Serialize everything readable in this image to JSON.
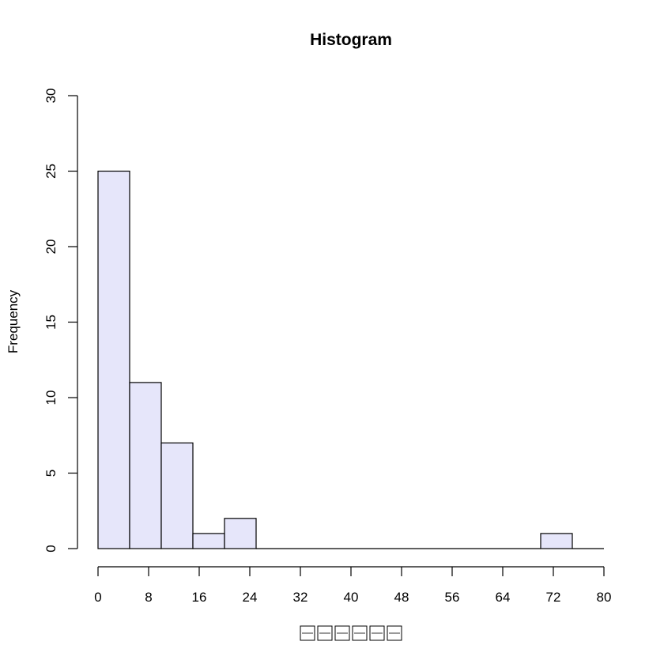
{
  "chart_data": {
    "type": "bar",
    "title": "Histogram",
    "ylabel": "Frequency",
    "xlabel_image_note": "xlabel rendered as tofu boxes (unrenderable glyphs) in the original",
    "xlabel": "",
    "bin_width": 5,
    "bins": [
      {
        "start": 0,
        "end": 5,
        "count": 25
      },
      {
        "start": 5,
        "end": 10,
        "count": 11
      },
      {
        "start": 10,
        "end": 15,
        "count": 7
      },
      {
        "start": 15,
        "end": 20,
        "count": 1
      },
      {
        "start": 20,
        "end": 25,
        "count": 2
      },
      {
        "start": 25,
        "end": 30,
        "count": 0
      },
      {
        "start": 30,
        "end": 35,
        "count": 0
      },
      {
        "start": 35,
        "end": 40,
        "count": 0
      },
      {
        "start": 40,
        "end": 45,
        "count": 0
      },
      {
        "start": 45,
        "end": 50,
        "count": 0
      },
      {
        "start": 50,
        "end": 55,
        "count": 0
      },
      {
        "start": 55,
        "end": 60,
        "count": 0
      },
      {
        "start": 60,
        "end": 65,
        "count": 0
      },
      {
        "start": 65,
        "end": 70,
        "count": 0
      },
      {
        "start": 70,
        "end": 75,
        "count": 1
      },
      {
        "start": 75,
        "end": 80,
        "count": 0
      }
    ],
    "xlim": [
      0,
      80
    ],
    "ylim": [
      0,
      30
    ],
    "xticks": [
      0,
      8,
      16,
      24,
      32,
      40,
      48,
      56,
      64,
      72,
      80
    ],
    "yticks": [
      0,
      5,
      10,
      15,
      20,
      25,
      30
    ],
    "grid": false,
    "colors": {
      "bar_fill": "#e6e6fa",
      "bar_stroke": "#000000",
      "axis": "#000000"
    }
  }
}
